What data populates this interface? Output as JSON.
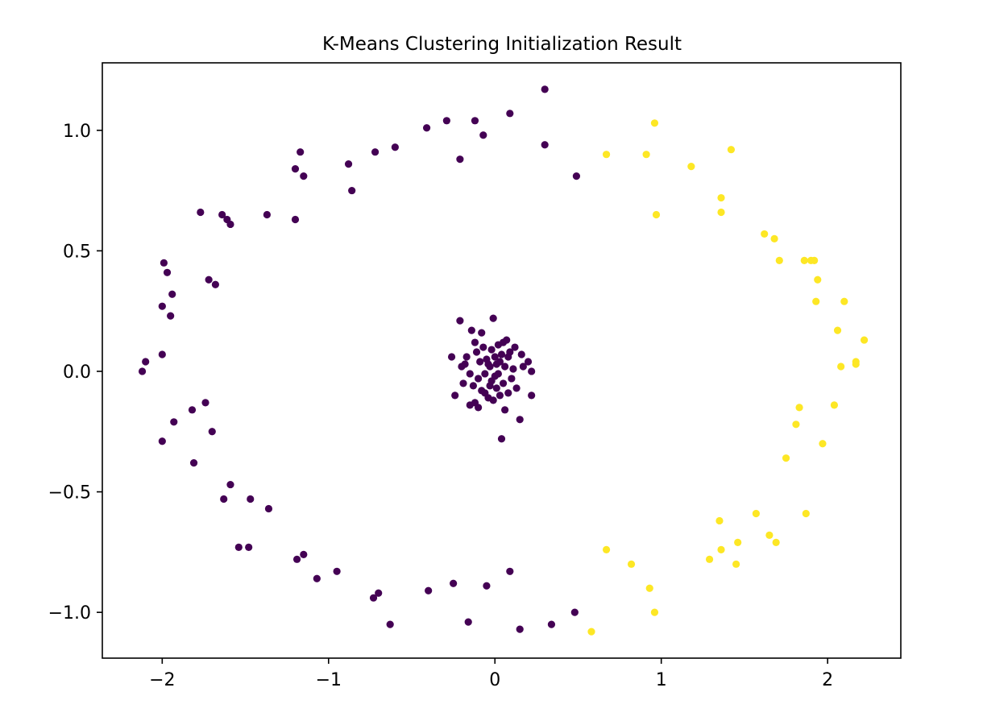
{
  "chart_data": {
    "type": "scatter",
    "title": "K-Means Clustering Initialization Result",
    "xlabel": "",
    "ylabel": "",
    "xlim": [
      -2.36,
      2.44
    ],
    "ylim": [
      -1.19,
      1.28
    ],
    "xticks": [
      -2,
      -1,
      0,
      1,
      2
    ],
    "xtick_labels": [
      "−2",
      "−1",
      "0",
      "1",
      "2"
    ],
    "yticks": [
      -1.0,
      -0.5,
      0.0,
      0.5,
      1.0
    ],
    "ytick_labels": [
      "−1.0",
      "−0.5",
      "0.0",
      "0.5",
      "1.0"
    ],
    "grid": false,
    "cluster_colors": [
      "#440154",
      "#fde725"
    ],
    "series": [
      {
        "cluster": 0,
        "color": "#440154",
        "points": [
          [
            -2.12,
            0.0
          ],
          [
            -2.1,
            0.04
          ],
          [
            -2.0,
            0.07
          ],
          [
            -2.0,
            -0.29
          ],
          [
            -2.0,
            0.27
          ],
          [
            -1.99,
            0.45
          ],
          [
            -1.97,
            0.41
          ],
          [
            -1.95,
            0.23
          ],
          [
            -1.94,
            0.32
          ],
          [
            -1.93,
            -0.21
          ],
          [
            -1.82,
            -0.16
          ],
          [
            -1.81,
            -0.38
          ],
          [
            -1.77,
            0.66
          ],
          [
            -1.74,
            -0.13
          ],
          [
            -1.72,
            0.38
          ],
          [
            -1.7,
            -0.25
          ],
          [
            -1.68,
            0.36
          ],
          [
            -1.64,
            0.65
          ],
          [
            -1.63,
            -0.53
          ],
          [
            -1.61,
            0.63
          ],
          [
            -1.59,
            0.61
          ],
          [
            -1.59,
            -0.47
          ],
          [
            -1.54,
            -0.73
          ],
          [
            -1.48,
            -0.73
          ],
          [
            -1.47,
            -0.53
          ],
          [
            -1.37,
            0.65
          ],
          [
            -1.36,
            -0.57
          ],
          [
            -1.2,
            0.84
          ],
          [
            -1.2,
            0.63
          ],
          [
            -1.19,
            -0.78
          ],
          [
            -1.17,
            0.91
          ],
          [
            -1.15,
            0.81
          ],
          [
            -1.15,
            -0.76
          ],
          [
            -1.07,
            -0.86
          ],
          [
            -0.95,
            -0.83
          ],
          [
            -0.88,
            0.86
          ],
          [
            -0.86,
            0.75
          ],
          [
            -0.73,
            -0.94
          ],
          [
            -0.72,
            0.91
          ],
          [
            -0.7,
            -0.92
          ],
          [
            -0.63,
            -1.05
          ],
          [
            -0.6,
            0.93
          ],
          [
            -0.41,
            1.01
          ],
          [
            -0.4,
            -0.91
          ],
          [
            -0.29,
            1.04
          ],
          [
            -0.25,
            -0.88
          ],
          [
            -0.21,
            0.88
          ],
          [
            -0.16,
            -1.04
          ],
          [
            -0.12,
            1.04
          ],
          [
            -0.07,
            0.98
          ],
          [
            -0.05,
            -0.89
          ],
          [
            0.09,
            1.07
          ],
          [
            0.09,
            -0.83
          ],
          [
            0.15,
            -1.07
          ],
          [
            0.3,
            0.94
          ],
          [
            0.3,
            1.17
          ],
          [
            0.34,
            -1.05
          ],
          [
            0.48,
            -1.0
          ],
          [
            0.49,
            0.81
          ],
          [
            -0.26,
            0.06
          ],
          [
            -0.24,
            -0.1
          ],
          [
            -0.21,
            0.21
          ],
          [
            -0.2,
            0.02
          ],
          [
            -0.19,
            -0.05
          ],
          [
            -0.18,
            0.03
          ],
          [
            -0.17,
            0.06
          ],
          [
            -0.15,
            -0.01
          ],
          [
            -0.14,
            0.17
          ],
          [
            -0.13,
            -0.06
          ],
          [
            -0.12,
            -0.13
          ],
          [
            -0.11,
            0.08
          ],
          [
            -0.1,
            -0.03
          ],
          [
            -0.09,
            0.04
          ],
          [
            -0.08,
            -0.08
          ],
          [
            -0.08,
            0.16
          ],
          [
            -0.07,
            0.1
          ],
          [
            -0.06,
            -0.01
          ],
          [
            -0.05,
            0.05
          ],
          [
            -0.04,
            -0.11
          ],
          [
            -0.03,
            0.02
          ],
          [
            -0.02,
            0.09
          ],
          [
            -0.02,
            -0.04
          ],
          [
            -0.01,
            0.22
          ],
          [
            0.0,
            -0.02
          ],
          [
            0.0,
            0.06
          ],
          [
            0.01,
            0.03
          ],
          [
            0.01,
            -0.07
          ],
          [
            0.02,
            -0.01
          ],
          [
            0.02,
            0.11
          ],
          [
            0.03,
            0.04
          ],
          [
            0.04,
            -0.28
          ],
          [
            0.04,
            0.07
          ],
          [
            0.05,
            -0.05
          ],
          [
            0.06,
            0.02
          ],
          [
            0.06,
            -0.16
          ],
          [
            0.07,
            0.13
          ],
          [
            0.08,
            -0.09
          ],
          [
            0.09,
            0.08
          ],
          [
            0.1,
            -0.03
          ],
          [
            0.11,
            0.01
          ],
          [
            0.12,
            0.1
          ],
          [
            0.13,
            -0.07
          ],
          [
            0.15,
            -0.2
          ],
          [
            0.16,
            0.07
          ],
          [
            0.17,
            0.02
          ],
          [
            0.2,
            0.04
          ],
          [
            0.22,
            -0.1
          ],
          [
            0.22,
            0.0
          ],
          [
            -0.15,
            -0.14
          ],
          [
            -0.12,
            0.12
          ],
          [
            -0.1,
            -0.15
          ],
          [
            -0.06,
            -0.09
          ],
          [
            -0.04,
            0.03
          ],
          [
            -0.01,
            -0.12
          ],
          [
            0.03,
            -0.1
          ],
          [
            0.05,
            0.12
          ],
          [
            0.08,
            0.06
          ],
          [
            -0.03,
            -0.06
          ]
        ]
      },
      {
        "cluster": 1,
        "color": "#fde725",
        "points": [
          [
            0.58,
            -1.08
          ],
          [
            0.67,
            0.9
          ],
          [
            0.67,
            -0.74
          ],
          [
            0.82,
            -0.8
          ],
          [
            0.91,
            0.9
          ],
          [
            0.93,
            -0.9
          ],
          [
            0.96,
            -1.0
          ],
          [
            0.96,
            1.03
          ],
          [
            0.97,
            0.65
          ],
          [
            1.18,
            0.85
          ],
          [
            1.29,
            -0.78
          ],
          [
            1.35,
            -0.62
          ],
          [
            1.36,
            0.72
          ],
          [
            1.36,
            0.66
          ],
          [
            1.36,
            -0.74
          ],
          [
            1.42,
            0.92
          ],
          [
            1.45,
            -0.8
          ],
          [
            1.46,
            -0.71
          ],
          [
            1.57,
            -0.59
          ],
          [
            1.62,
            0.57
          ],
          [
            1.65,
            -0.68
          ],
          [
            1.68,
            0.55
          ],
          [
            1.69,
            -0.71
          ],
          [
            1.71,
            0.46
          ],
          [
            1.75,
            -0.36
          ],
          [
            1.81,
            -0.22
          ],
          [
            1.83,
            -0.15
          ],
          [
            1.86,
            0.46
          ],
          [
            1.87,
            -0.59
          ],
          [
            1.9,
            0.46
          ],
          [
            1.92,
            0.46
          ],
          [
            1.93,
            0.29
          ],
          [
            1.94,
            0.38
          ],
          [
            1.97,
            -0.3
          ],
          [
            2.04,
            -0.14
          ],
          [
            2.06,
            0.17
          ],
          [
            2.08,
            0.02
          ],
          [
            2.1,
            0.29
          ],
          [
            2.17,
            0.04
          ],
          [
            2.17,
            0.03
          ],
          [
            2.22,
            0.13
          ]
        ]
      }
    ]
  }
}
